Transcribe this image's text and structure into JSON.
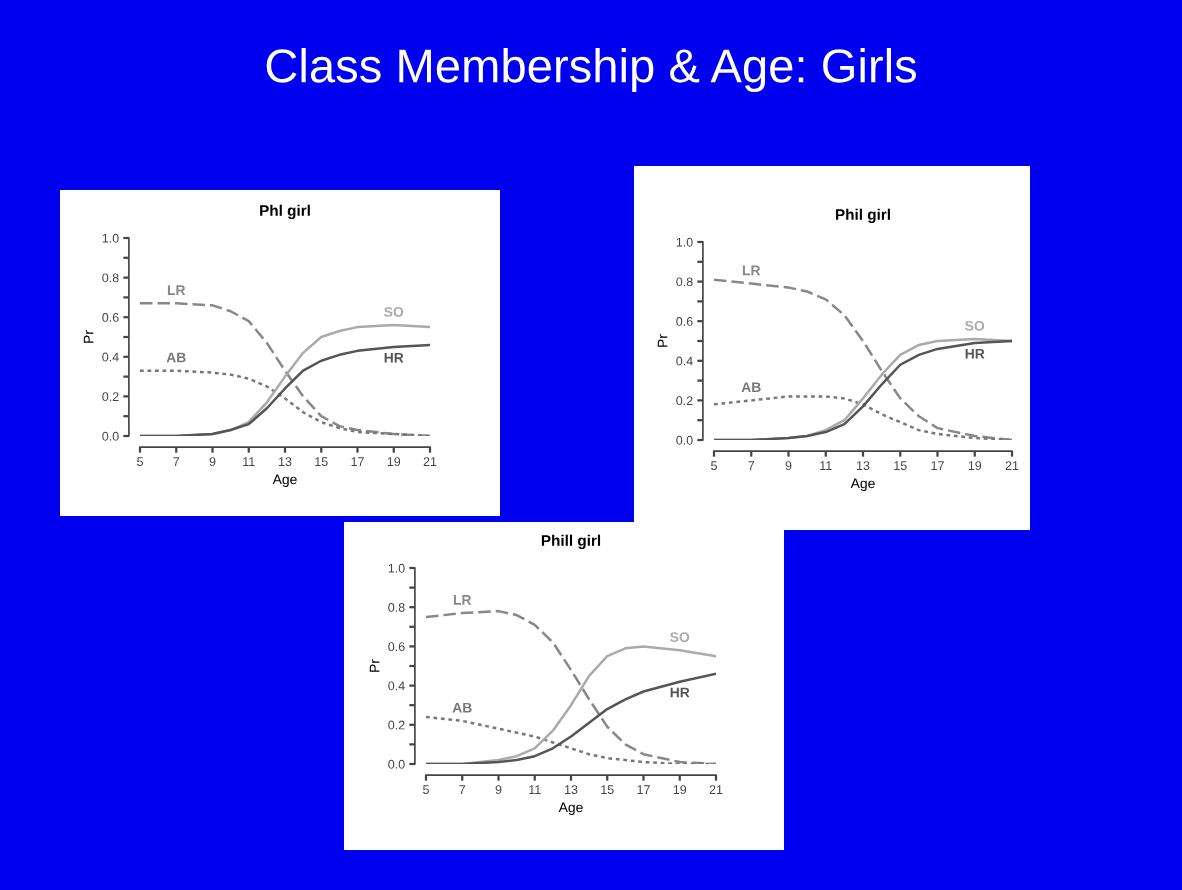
{
  "chart_data": [
    {
      "type": "line",
      "title": "Phl girl",
      "xlabel": "Age",
      "ylabel": "Pr",
      "annotations": [
        "Class Membership & Age: Girls"
      ],
      "x": [
        5,
        7,
        9,
        10,
        11,
        12,
        13,
        14,
        15,
        16,
        17,
        19,
        21
      ],
      "xlim": [
        5,
        21
      ],
      "xticks": [
        5,
        7,
        9,
        11,
        13,
        15,
        17,
        19,
        21
      ],
      "ylim": [
        0,
        1
      ],
      "yticks": [
        {
          "value": 0,
          "label": "0.0"
        },
        {
          "value": 0.1,
          "label": null
        },
        {
          "value": 0.2,
          "label": "0.2"
        },
        {
          "value": 0.3,
          "label": null
        },
        {
          "value": 0.4,
          "label": "0.4"
        },
        {
          "value": 0.5,
          "label": null
        },
        {
          "value": 0.6,
          "label": "0.6"
        },
        {
          "value": 0.7,
          "label": null
        },
        {
          "value": 0.8,
          "label": "0.8"
        },
        {
          "value": 0.9,
          "label": null
        },
        {
          "value": 1,
          "label": "1.0"
        }
      ],
      "grid": false,
      "legend": false,
      "series": [
        {
          "name": "LR",
          "color": "#888888",
          "line_style": "dashed",
          "values": [
            0.67,
            0.67,
            0.66,
            0.63,
            0.58,
            0.47,
            0.33,
            0.2,
            0.1,
            0.05,
            0.03,
            0.01,
            0.0
          ]
        },
        {
          "name": "AB",
          "color": "#777777",
          "line_style": "dotted",
          "values": [
            0.33,
            0.33,
            0.32,
            0.31,
            0.29,
            0.25,
            0.19,
            0.12,
            0.07,
            0.04,
            0.02,
            0.01,
            0.0
          ]
        },
        {
          "name": "SO",
          "color": "#aaaaaa",
          "line_style": "solid",
          "values": [
            0.0,
            0.0,
            0.01,
            0.03,
            0.07,
            0.17,
            0.3,
            0.42,
            0.5,
            0.53,
            0.55,
            0.56,
            0.55
          ]
        },
        {
          "name": "HR",
          "color": "#555555",
          "line_style": "solid",
          "values": [
            0.0,
            0.0,
            0.01,
            0.03,
            0.06,
            0.14,
            0.24,
            0.33,
            0.38,
            0.41,
            0.43,
            0.45,
            0.46
          ]
        }
      ]
    },
    {
      "type": "line",
      "title": "Phil girl",
      "xlabel": "Age",
      "ylabel": "Pr",
      "x": [
        5,
        7,
        9,
        10,
        11,
        12,
        13,
        14,
        15,
        16,
        17,
        19,
        21
      ],
      "xlim": [
        5,
        21
      ],
      "xticks": [
        5,
        7,
        9,
        11,
        13,
        15,
        17,
        19,
        21
      ],
      "ylim": [
        0,
        1
      ],
      "yticks": [
        {
          "value": 0,
          "label": "0.0"
        },
        {
          "value": 0.1,
          "label": null
        },
        {
          "value": 0.2,
          "label": "0.2"
        },
        {
          "value": 0.3,
          "label": null
        },
        {
          "value": 0.4,
          "label": "0.4"
        },
        {
          "value": 0.5,
          "label": null
        },
        {
          "value": 0.6,
          "label": "0.6"
        },
        {
          "value": 0.7,
          "label": null
        },
        {
          "value": 0.8,
          "label": "0.8"
        },
        {
          "value": 0.9,
          "label": null
        },
        {
          "value": 1,
          "label": "1.0"
        }
      ],
      "grid": false,
      "legend": false,
      "series": [
        {
          "name": "LR",
          "color": "#888888",
          "line_style": "dashed",
          "values": [
            0.81,
            0.79,
            0.77,
            0.75,
            0.71,
            0.63,
            0.5,
            0.35,
            0.21,
            0.12,
            0.06,
            0.02,
            0.0
          ]
        },
        {
          "name": "AB",
          "color": "#777777",
          "line_style": "dotted",
          "values": [
            0.18,
            0.2,
            0.22,
            0.22,
            0.22,
            0.21,
            0.18,
            0.13,
            0.09,
            0.05,
            0.03,
            0.01,
            0.0
          ]
        },
        {
          "name": "SO",
          "color": "#aaaaaa",
          "line_style": "solid",
          "values": [
            0.0,
            0.0,
            0.01,
            0.02,
            0.05,
            0.1,
            0.21,
            0.33,
            0.43,
            0.48,
            0.5,
            0.51,
            0.5
          ]
        },
        {
          "name": "HR",
          "color": "#555555",
          "line_style": "solid",
          "values": [
            0.0,
            0.0,
            0.01,
            0.02,
            0.04,
            0.08,
            0.17,
            0.28,
            0.38,
            0.43,
            0.46,
            0.49,
            0.5
          ]
        }
      ]
    },
    {
      "type": "line",
      "title": "Phill girl",
      "xlabel": "Age",
      "ylabel": "Pr",
      "x": [
        5,
        7,
        9,
        10,
        11,
        12,
        13,
        14,
        15,
        16,
        17,
        19,
        21
      ],
      "xlim": [
        5,
        21
      ],
      "xticks": [
        5,
        7,
        9,
        11,
        13,
        15,
        17,
        19,
        21
      ],
      "ylim": [
        0,
        1
      ],
      "yticks": [
        {
          "value": 0,
          "label": "0.0"
        },
        {
          "value": 0.1,
          "label": null
        },
        {
          "value": 0.2,
          "label": "0.2"
        },
        {
          "value": 0.3,
          "label": null
        },
        {
          "value": 0.4,
          "label": "0.4"
        },
        {
          "value": 0.5,
          "label": null
        },
        {
          "value": 0.6,
          "label": "0.6"
        },
        {
          "value": 0.7,
          "label": null
        },
        {
          "value": 0.8,
          "label": "0.8"
        },
        {
          "value": 0.9,
          "label": null
        },
        {
          "value": 1,
          "label": "1.0"
        }
      ],
      "grid": false,
      "legend": false,
      "series": [
        {
          "name": "LR",
          "color": "#888888",
          "line_style": "dashed",
          "values": [
            0.75,
            0.77,
            0.78,
            0.76,
            0.71,
            0.62,
            0.48,
            0.33,
            0.19,
            0.1,
            0.05,
            0.01,
            0.0
          ]
        },
        {
          "name": "AB",
          "color": "#777777",
          "line_style": "dotted",
          "values": [
            0.24,
            0.22,
            0.18,
            0.16,
            0.14,
            0.11,
            0.08,
            0.05,
            0.03,
            0.02,
            0.01,
            0.0,
            0.0
          ]
        },
        {
          "name": "SO",
          "color": "#aaaaaa",
          "line_style": "solid",
          "values": [
            0.0,
            0.0,
            0.02,
            0.04,
            0.08,
            0.17,
            0.3,
            0.45,
            0.55,
            0.59,
            0.6,
            0.58,
            0.55
          ]
        },
        {
          "name": "HR",
          "color": "#555555",
          "line_style": "solid",
          "values": [
            0.0,
            0.0,
            0.01,
            0.02,
            0.04,
            0.08,
            0.14,
            0.21,
            0.28,
            0.33,
            0.37,
            0.42,
            0.46
          ]
        }
      ]
    }
  ]
}
